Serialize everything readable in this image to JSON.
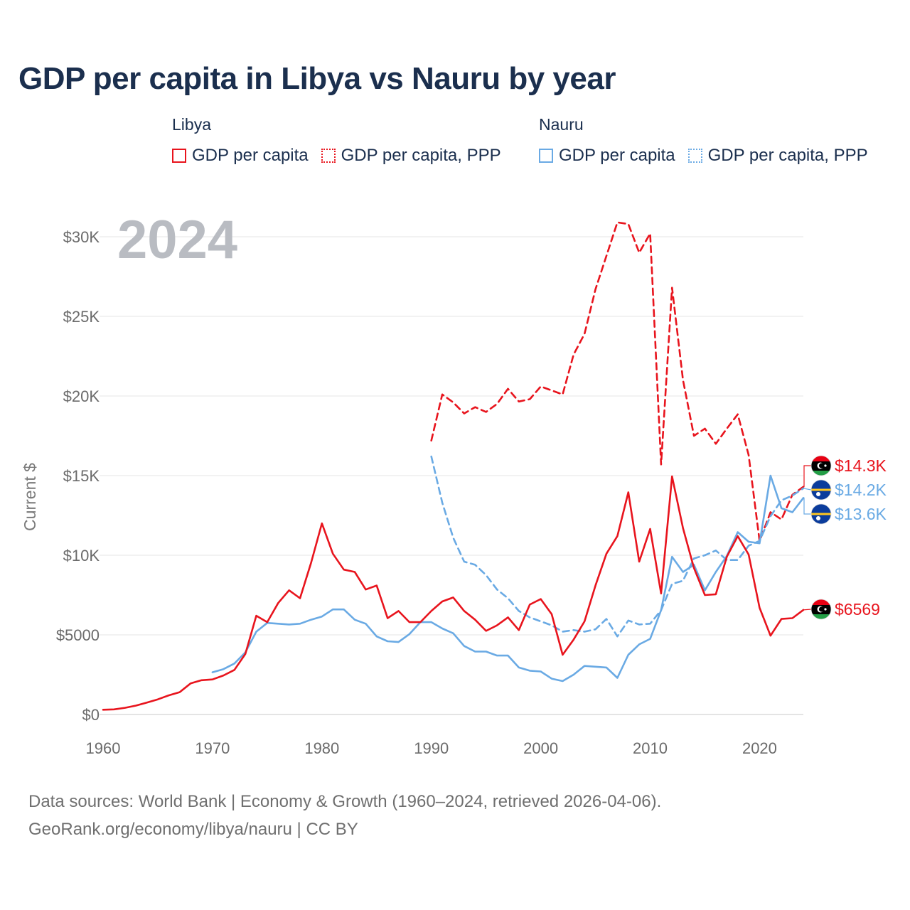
{
  "title": "GDP per capita in Libya vs Nauru by year",
  "legend": {
    "groups": [
      {
        "country": "Libya",
        "color": "#e8141d",
        "items": [
          {
            "label": "GDP per capita",
            "style": "solid"
          },
          {
            "label": "GDP per capita, PPP",
            "style": "dotted"
          }
        ]
      },
      {
        "country": "Nauru",
        "color": "#6aaae4",
        "items": [
          {
            "label": "GDP per capita",
            "style": "solid"
          },
          {
            "label": "GDP per capita, PPP",
            "style": "dotted"
          }
        ]
      }
    ]
  },
  "chart_data": {
    "type": "line",
    "title": "GDP per capita in Libya vs Nauru by year",
    "xlabel": "",
    "ylabel": "Current $",
    "xlim": [
      1960,
      2024
    ],
    "ylim": [
      0,
      30000
    ],
    "x_ticks": [
      1960,
      1970,
      1980,
      1990,
      2000,
      2010,
      2020
    ],
    "y_ticks": [
      0,
      5000,
      10000,
      15000,
      20000,
      25000,
      30000
    ],
    "y_tick_labels": [
      "$0",
      "$5000",
      "$10K",
      "$15K",
      "$20K",
      "$25K",
      "$30K"
    ],
    "grid": true,
    "year_overlay": "2024",
    "series": [
      {
        "name": "Libya GDP per capita",
        "color": "#e8141d",
        "dash": "solid",
        "end_label": "$6569",
        "x": [
          1960,
          1961,
          1962,
          1963,
          1964,
          1965,
          1966,
          1967,
          1968,
          1969,
          1970,
          1971,
          1972,
          1973,
          1974,
          1975,
          1976,
          1977,
          1978,
          1979,
          1980,
          1981,
          1982,
          1983,
          1984,
          1985,
          1986,
          1987,
          1988,
          1989,
          1990,
          1991,
          1992,
          1993,
          1994,
          1995,
          1996,
          1997,
          1998,
          1999,
          2000,
          2001,
          2002,
          2003,
          2004,
          2005,
          2006,
          2007,
          2008,
          2009,
          2010,
          2011,
          2012,
          2013,
          2014,
          2015,
          2016,
          2017,
          2018,
          2019,
          2020,
          2021,
          2022,
          2023,
          2024
        ],
        "values": [
          300,
          320,
          420,
          560,
          750,
          950,
          1200,
          1400,
          1950,
          2150,
          2200,
          2450,
          2800,
          3800,
          6200,
          5800,
          7000,
          7800,
          7300,
          9500,
          12000,
          10100,
          9100,
          8950,
          7850,
          8100,
          6050,
          6500,
          5800,
          5800,
          6500,
          7100,
          7350,
          6500,
          5950,
          5250,
          5600,
          6100,
          5300,
          6900,
          7250,
          6300,
          3750,
          4700,
          5850,
          8100,
          10100,
          11200,
          13950,
          9600,
          11650,
          7600,
          14950,
          11700,
          9200,
          7500,
          7550,
          9900,
          11200,
          10050,
          6700,
          4950,
          6000,
          6050,
          6569
        ]
      },
      {
        "name": "Libya GDP per capita, PPP",
        "color": "#e8141d",
        "dash": "dashed",
        "end_label": "$14.3K",
        "x": [
          1990,
          1991,
          1992,
          1993,
          1994,
          1995,
          1996,
          1997,
          1998,
          1999,
          2000,
          2001,
          2002,
          2003,
          2004,
          2005,
          2006,
          2007,
          2008,
          2009,
          2010,
          2011,
          2012,
          2013,
          2014,
          2015,
          2016,
          2017,
          2018,
          2019,
          2020,
          2021,
          2022,
          2023,
          2024
        ],
        "values": [
          17200,
          20100,
          19600,
          18900,
          19300,
          19000,
          19500,
          20450,
          19650,
          19800,
          20600,
          20350,
          20100,
          22600,
          23900,
          26700,
          28800,
          30900,
          30800,
          29000,
          30200,
          15700,
          26800,
          21000,
          17500,
          17950,
          17000,
          17950,
          18850,
          16300,
          10900,
          12700,
          12250,
          13800,
          14300
        ]
      },
      {
        "name": "Nauru GDP per capita",
        "color": "#6aaae4",
        "dash": "solid",
        "end_label": "$13.6K",
        "x": [
          1970,
          1971,
          1972,
          1973,
          1974,
          1975,
          1976,
          1977,
          1978,
          1979,
          1980,
          1981,
          1982,
          1983,
          1984,
          1985,
          1986,
          1987,
          1988,
          1989,
          1990,
          1991,
          1992,
          1993,
          1994,
          1995,
          1996,
          1997,
          1998,
          1999,
          2000,
          2001,
          2002,
          2003,
          2004,
          2005,
          2006,
          2007,
          2008,
          2009,
          2010,
          2011,
          2012,
          2013,
          2014,
          2015,
          2016,
          2017,
          2018,
          2019,
          2020,
          2021,
          2022,
          2023,
          2024
        ],
        "values": [
          2650,
          2850,
          3200,
          3900,
          5200,
          5750,
          5700,
          5650,
          5700,
          5950,
          6150,
          6600,
          6600,
          5950,
          5700,
          4900,
          4600,
          4550,
          5050,
          5800,
          5800,
          5400,
          5100,
          4300,
          3950,
          3950,
          3700,
          3700,
          2950,
          2750,
          2700,
          2250,
          2100,
          2500,
          3050,
          3000,
          2950,
          2300,
          3750,
          4400,
          4750,
          6550,
          9900,
          8950,
          9400,
          7800,
          8950,
          9950,
          11450,
          10850,
          10750,
          15000,
          12950,
          12700,
          13600
        ]
      },
      {
        "name": "Nauru GDP per capita, PPP",
        "color": "#6aaae4",
        "dash": "dashed",
        "end_label": "$14.2K",
        "x": [
          1990,
          1991,
          1992,
          1993,
          1994,
          1995,
          1996,
          1997,
          1998,
          1999,
          2000,
          2001,
          2002,
          2003,
          2004,
          2005,
          2006,
          2007,
          2008,
          2009,
          2010,
          2011,
          2012,
          2013,
          2014,
          2015,
          2016,
          2017,
          2018,
          2019,
          2020,
          2021,
          2022,
          2023,
          2024
        ],
        "values": [
          16200,
          13300,
          11100,
          9600,
          9400,
          8750,
          7850,
          7300,
          6500,
          6100,
          5850,
          5600,
          5200,
          5300,
          5200,
          5350,
          6000,
          4900,
          5900,
          5650,
          5700,
          6550,
          8200,
          8400,
          9800,
          10000,
          10300,
          9700,
          9700,
          10600,
          10900,
          12450,
          13450,
          13750,
          14200
        ]
      }
    ]
  },
  "footer": {
    "line1": "Data sources: World Bank | Economy & Growth (1960–2024, retrieved 2026-04-06).",
    "line2": "GeoRank.org/economy/libya/nauru | CC BY"
  }
}
